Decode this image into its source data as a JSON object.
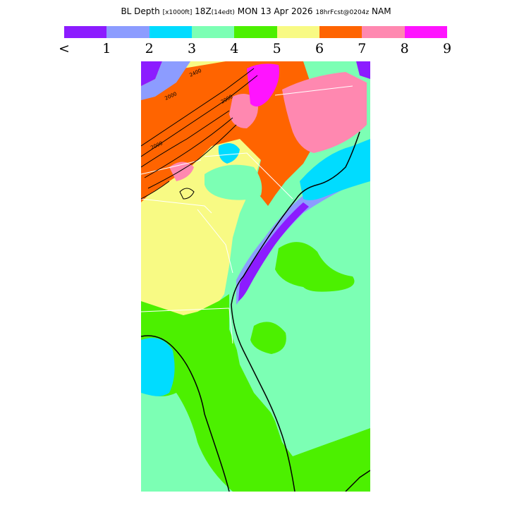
{
  "title": {
    "parts": [
      {
        "text": "BL Depth ",
        "small": false
      },
      {
        "text": "[x1000ft]",
        "small": true
      },
      {
        "text": " 18Z",
        "small": false
      },
      {
        "text": "(14edt)",
        "small": true
      },
      {
        "text": " MON 13 Apr 2026 ",
        "small": false
      },
      {
        "text": "18hrFcst@0204z",
        "small": true
      },
      {
        "text": " NAM",
        "small": false
      }
    ]
  },
  "colorbar": {
    "colors": [
      "#8c1cff",
      "#8c9cff",
      "#00dcff",
      "#7cffb4",
      "#4cf000",
      "#f8fa84",
      "#ff6400",
      "#ff88b0",
      "#ff14ff"
    ],
    "labels": [
      "<",
      "1",
      "2",
      "3",
      "4",
      "5",
      "6",
      "7",
      "8",
      "9"
    ]
  },
  "map": {
    "contour_labels": [
      "2400",
      "2000",
      "2000",
      "2000"
    ]
  }
}
